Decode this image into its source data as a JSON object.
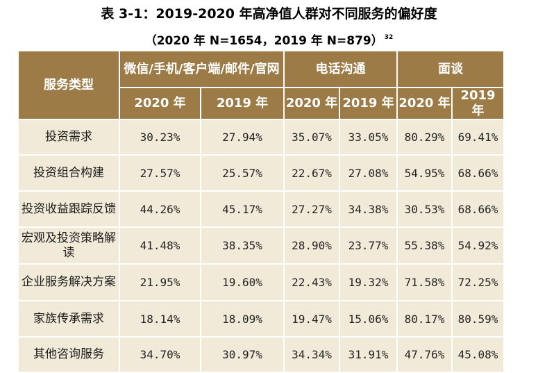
{
  "title": "表 3-1：2019-2020 年高净值人群对不同服务的偏好度",
  "subtitle": "（2020 年 N=1654，2019 年 N=879）",
  "footnote_mark": "32",
  "table": {
    "header": {
      "service_type": "服务类型",
      "groups": [
        "微信/手机/客户端/邮件/官网",
        "电话沟通",
        "面谈"
      ],
      "years": [
        "2020 年",
        "2019 年",
        "2020 年",
        "2019 年",
        "2020 年",
        "2019 年"
      ]
    },
    "rows": [
      {
        "service": "投资需求",
        "values": [
          "30.23%",
          "27.94%",
          "35.07%",
          "33.05%",
          "80.29%",
          "69.41%"
        ]
      },
      {
        "service": "投资组合构建",
        "values": [
          "27.57%",
          "25.57%",
          "22.67%",
          "27.08%",
          "54.95%",
          "68.66%"
        ]
      },
      {
        "service": "投资收益跟踪反馈",
        "values": [
          "44.26%",
          "45.17%",
          "27.27%",
          "34.38%",
          "30.53%",
          "68.66%"
        ]
      },
      {
        "service": "宏观及投资策略解读",
        "values": [
          "41.48%",
          "38.35%",
          "28.90%",
          "23.77%",
          "55.38%",
          "54.92%"
        ]
      },
      {
        "service": "企业服务解决方案",
        "values": [
          "21.95%",
          "19.60%",
          "22.43%",
          "19.32%",
          "71.58%",
          "72.25%"
        ]
      },
      {
        "service": "家族传承需求",
        "values": [
          "18.14%",
          "18.09%",
          "19.47%",
          "15.06%",
          "80.17%",
          "80.59%"
        ]
      },
      {
        "service": "其他咨询服务",
        "values": [
          "34.70%",
          "30.97%",
          "34.34%",
          "31.91%",
          "47.76%",
          "45.08%"
        ]
      }
    ]
  }
}
